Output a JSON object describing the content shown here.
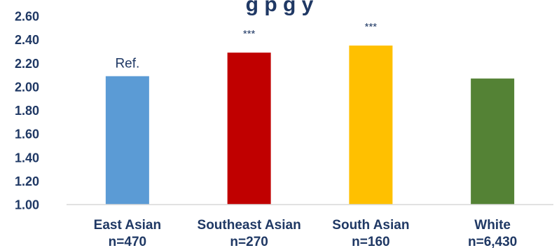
{
  "chart_data": {
    "type": "bar",
    "title": "g  p                        g         y",
    "categories": [
      "East Asian",
      "Southeast Asian",
      "South Asian",
      "White"
    ],
    "category_counts": [
      "n=470",
      "n=270",
      "n=160",
      "n=6,430"
    ],
    "values": [
      2.09,
      2.29,
      2.35,
      2.07
    ],
    "annotations": [
      "Ref.",
      "***",
      "***",
      ""
    ],
    "colors": [
      "#5b9bd5",
      "#c00000",
      "#ffc000",
      "#548235"
    ],
    "yticks": [
      "1.00",
      "1.20",
      "1.40",
      "1.60",
      "1.80",
      "2.00",
      "2.20",
      "2.40",
      "2.60"
    ],
    "ylim": [
      1.0,
      2.6
    ],
    "xlabel": "",
    "ylabel": "",
    "grid": false,
    "legend": "none"
  }
}
